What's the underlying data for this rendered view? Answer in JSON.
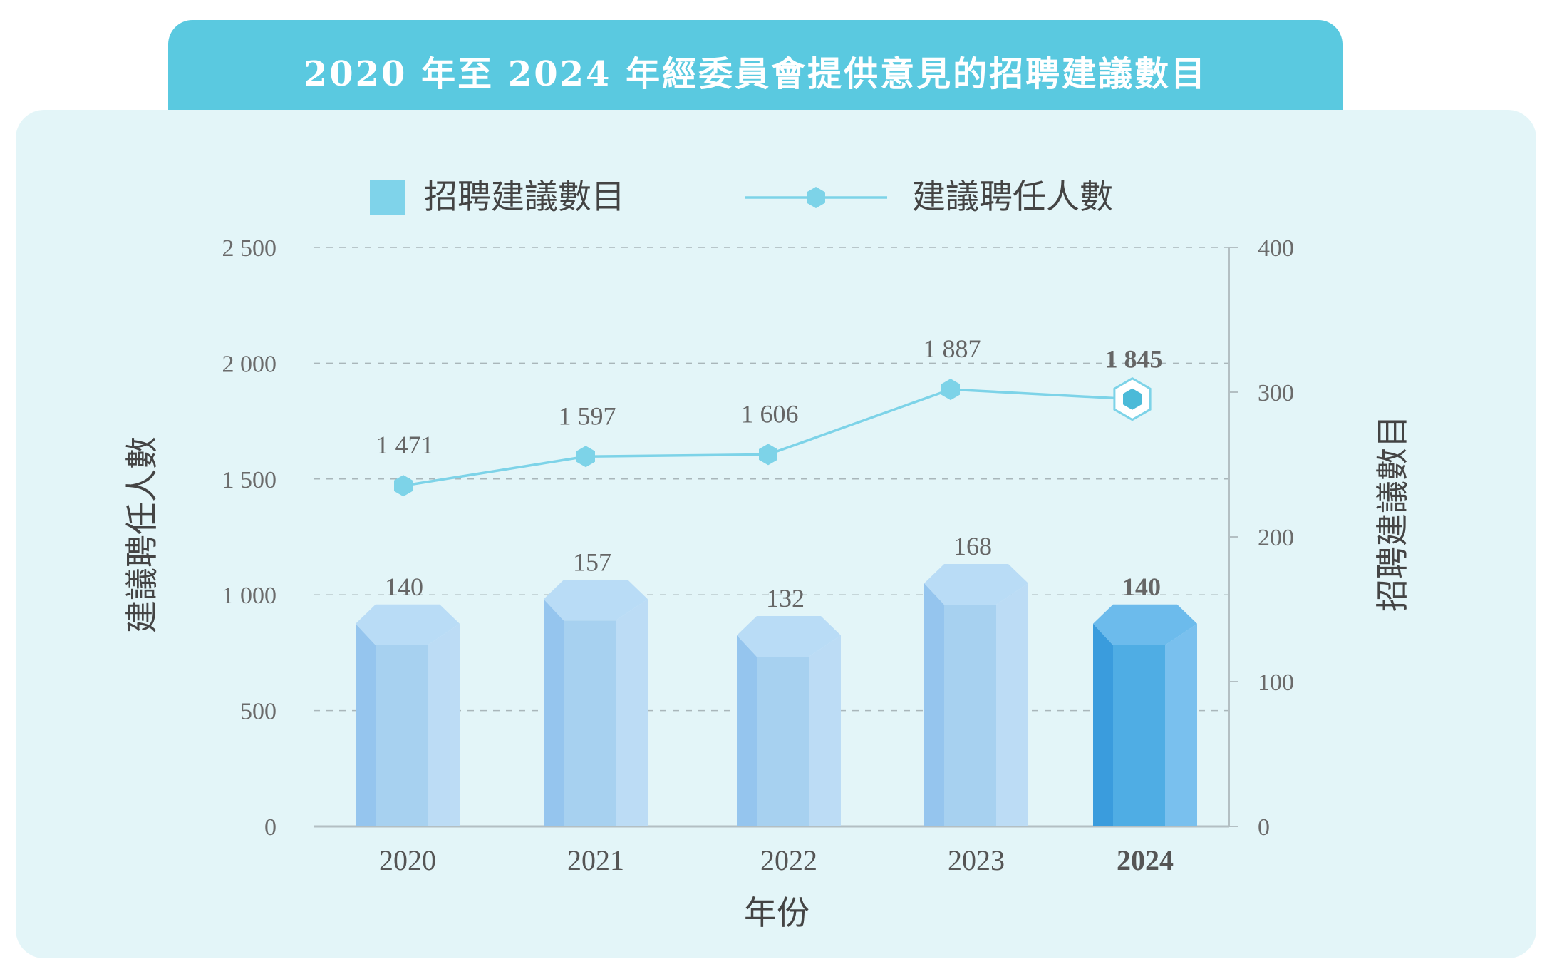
{
  "title": "2020 年至 2024 年經委員會提供意見的招聘建議數目",
  "colors": {
    "title_bg": "#5ac9e0",
    "panel_bg": "#e3f5f8",
    "bar_face": "#a7d1f0",
    "bar_left": "#95c5ee",
    "bar_right": "#bcdcf5",
    "bar_top": "#b9dcf6",
    "bar_highlight_face": "#4fade4",
    "bar_highlight_left": "#3a9cdd",
    "bar_highlight_right": "#79c0ee",
    "bar_highlight_top": "#6cbbec",
    "line": "#7dd3e8",
    "marker": "#7dd3e8",
    "highlight_text": "#5ac9e0",
    "grid": "#a9b6ba",
    "axis": "#b3bfc3"
  },
  "chart_data": {
    "type": "bar",
    "title": "2020 年至 2024 年經委員會提供意見的招聘建議數目",
    "xlabel": "年份",
    "ylabel_left": "建議聘任人數",
    "ylabel_right": "招聘建議數目",
    "categories": [
      "2020",
      "2021",
      "2022",
      "2023",
      "2024"
    ],
    "highlight_category": "2024",
    "left_axis": {
      "ylim": [
        0,
        2500
      ],
      "ticks": [
        0,
        500,
        1000,
        1500,
        2000,
        2500
      ],
      "tick_labels": [
        "0",
        "500",
        "1 000",
        "1 500",
        "2 000",
        "2 500"
      ]
    },
    "right_axis": {
      "ylim": [
        0,
        400
      ],
      "ticks": [
        0,
        100,
        200,
        300,
        400
      ],
      "tick_labels": [
        "0",
        "100",
        "200",
        "300",
        "400"
      ]
    },
    "grid": true,
    "legend_position": "top",
    "series": [
      {
        "name": "招聘建議數目",
        "type": "bar",
        "axis": "right",
        "values": [
          140,
          157,
          132,
          168,
          140
        ],
        "labels": [
          "140",
          "157",
          "132",
          "168",
          "140"
        ]
      },
      {
        "name": "建議聘任人數",
        "type": "line",
        "axis": "left",
        "values": [
          1471,
          1597,
          1606,
          1887,
          1845
        ],
        "labels": [
          "1 471",
          "1 597",
          "1 606",
          "1 887",
          "1 845"
        ]
      }
    ]
  }
}
